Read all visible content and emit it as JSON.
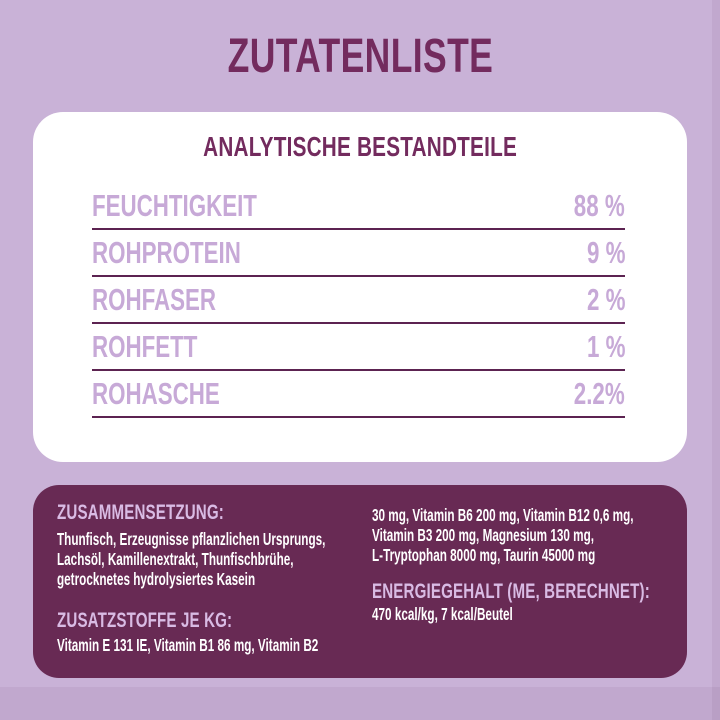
{
  "colors": {
    "background": "#c9b2d7",
    "plum_dark": "#732b5e",
    "panel_bg": "#682a54",
    "lilac_text": "#c7a9d7",
    "panel_heading": "#d9bbe4",
    "white_text": "#ffffff",
    "divider": "#5c2351",
    "card_bg": "#ffffff"
  },
  "header": {
    "title": "ZUTATENLISTE"
  },
  "analytical_card": {
    "heading": "ANALYTISCHE BESTANDTEILE",
    "rows": [
      {
        "label": "FEUCHTIGKEIT",
        "value": "88 %"
      },
      {
        "label": "ROHPROTEIN",
        "value": "9 %"
      },
      {
        "label": "ROHFASER",
        "value": "2 %"
      },
      {
        "label": "ROHFETT",
        "value": "1 %"
      },
      {
        "label": "ROHASCHE",
        "value": "2.2%"
      }
    ]
  },
  "info_panel": {
    "composition": {
      "heading": "ZUSAMMENSETZUNG:",
      "lines": [
        "Thunfisch, Erzeugnisse pflanzlichen Ursprungs,",
        "Lachsöl, Kamillenextrakt, Thunfischbrühe,",
        "getrocknetes hydrolysiertes Kasein"
      ]
    },
    "additives": {
      "heading": "ZUSATZSTOFFE JE KG:",
      "lines_left": [
        "Vitamin E 131 IE, Vitamin B1 86 mg, Vitamin B2"
      ],
      "lines_right": [
        "30 mg, Vitamin B6 200 mg, Vitamin B12 0,6 mg,",
        "Vitamin B3 200 mg, Magnesium 130 mg,",
        "L-Tryptophan 8000 mg, Taurin 45000 mg"
      ]
    },
    "energy": {
      "heading": "ENERGIEGEHALT (ME, BERECHNET):",
      "value": "470 kcal/kg, 7 kcal/Beutel"
    }
  }
}
